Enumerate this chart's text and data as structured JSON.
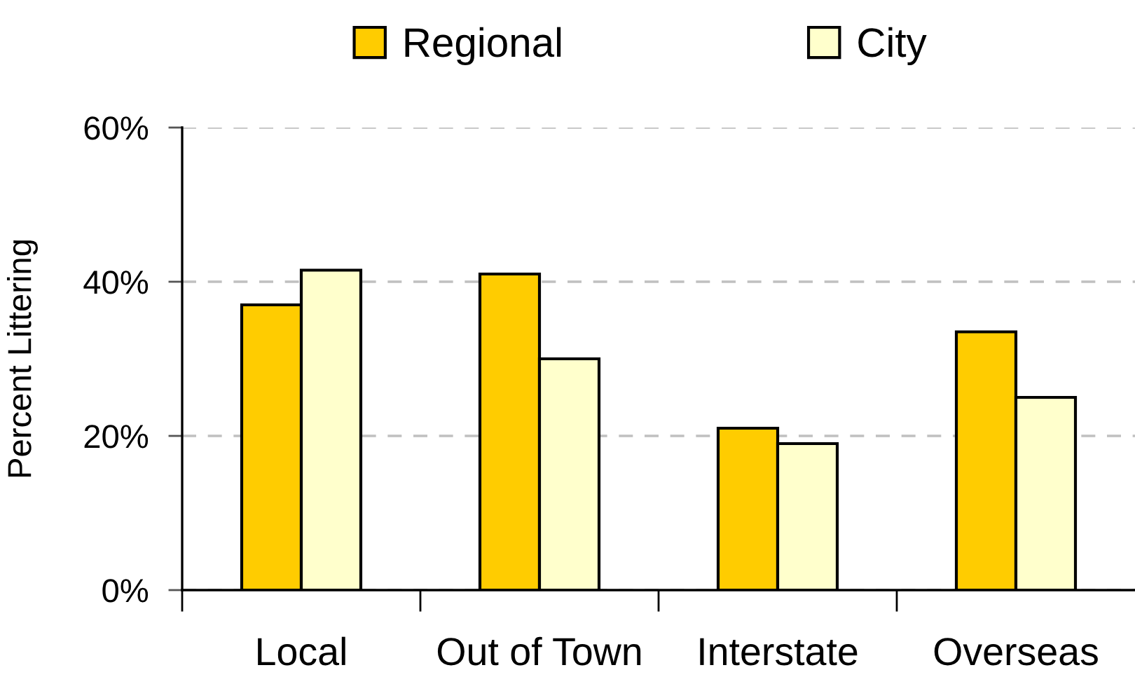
{
  "chart_data": {
    "type": "bar",
    "ylabel": "Percent Littering",
    "categories": [
      "Local",
      "Out of Town",
      "Interstate",
      "Overseas"
    ],
    "series": [
      {
        "name": "Regional",
        "color": "#ffcc00",
        "values": [
          37,
          41,
          21,
          33.5
        ]
      },
      {
        "name": "City",
        "color": "#ffffcc",
        "values": [
          41.5,
          30,
          19,
          25
        ]
      }
    ],
    "ylim": [
      0,
      60
    ],
    "yticks": [
      {
        "value": 0,
        "label": "0%"
      },
      {
        "value": 20,
        "label": "20%"
      },
      {
        "value": 40,
        "label": "40%"
      },
      {
        "value": 60,
        "label": "60%"
      }
    ],
    "grid": "y",
    "legend": "top"
  }
}
